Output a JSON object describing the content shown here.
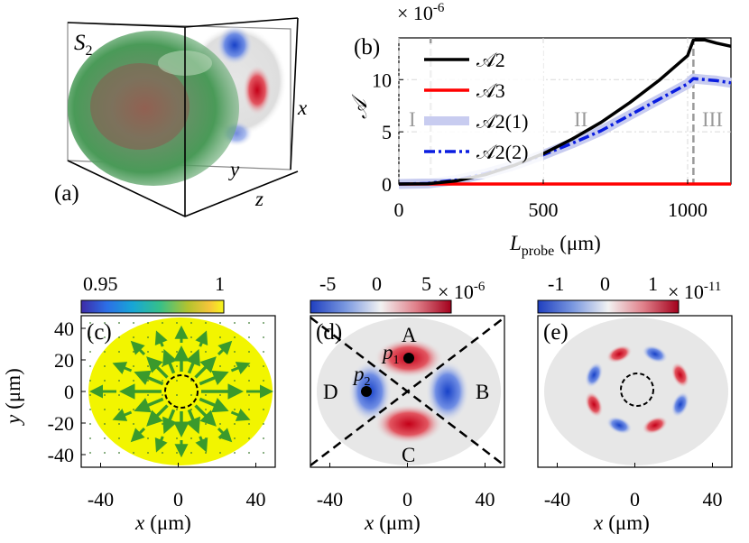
{
  "colors": {
    "A2": "#000000",
    "A3": "#ff0000",
    "A2_1": "#c8ccf0",
    "A2_2": "#0a1de0",
    "field_yellow": "#f2f500",
    "arrow_green": "#3a9a2c",
    "red_lobe": "#d42a2a",
    "blue_lobe": "#3c66dd"
  },
  "panel_a": {
    "label": "(a)",
    "species_label": "S",
    "species_sub": "2",
    "axis_x": "x",
    "axis_y": "y",
    "axis_z": "z"
  },
  "panel_b": {
    "label": "(b)",
    "exponent_text": "× 10",
    "exponent_power": "-6",
    "ylabel": "𝒜",
    "xlabel_main": "L",
    "xlabel_sub": "probe",
    "xlabel_unit": "(μm)",
    "region_I": "I",
    "region_II": "II",
    "region_III": "III",
    "legend": [
      "𝒜2",
      "𝒜3",
      "𝒜2(1)",
      "𝒜2(2)"
    ]
  },
  "panel_c": {
    "label": "(c)",
    "cbar_min": "0.95",
    "cbar_max": "1",
    "ylabel_main": "y",
    "ylabel_unit": "(μm)",
    "xlabel_main": "x",
    "xlabel_unit": "(μm)"
  },
  "panel_d": {
    "label": "(d)",
    "cbar_ticks": [
      "-5",
      "0",
      "5"
    ],
    "exponent_text": "× 10",
    "exponent_power": "-6",
    "region_A": "A",
    "region_B": "B",
    "region_C": "C",
    "region_D": "D",
    "point_p1": "p",
    "point_p1_sub": "1",
    "point_p2": "p",
    "point_p2_sub": "2",
    "xlabel_main": "x",
    "xlabel_unit": "(μm)"
  },
  "panel_e": {
    "label": "(e)",
    "cbar_ticks": [
      "-1",
      "0",
      "1"
    ],
    "exponent_text": "× 10",
    "exponent_power": "-11",
    "xlabel_main": "x",
    "xlabel_unit": "(μm)"
  },
  "chart_data": [
    {
      "id": "b",
      "type": "line",
      "title": "",
      "xlabel": "L_probe (μm)",
      "ylabel": "𝒜 (×10^-6)",
      "xlim": [
        0,
        1150
      ],
      "ylim": [
        0,
        14
      ],
      "xticks": [
        0,
        500,
        1000
      ],
      "yticks": [
        0,
        5,
        10
      ],
      "x_tick_labels": [
        "0",
        "500",
        "1000"
      ],
      "y_tick_labels": [
        "0",
        "5",
        "10"
      ],
      "vlines": [
        110,
        1020
      ],
      "legend_position": "top-left",
      "series": [
        {
          "name": "𝒜2",
          "color": "#000000",
          "style": "solid",
          "x": [
            0,
            100,
            200,
            300,
            400,
            500,
            600,
            700,
            800,
            900,
            1000,
            1020,
            1060,
            1100,
            1150
          ],
          "y": [
            0,
            0.02,
            0.3,
            0.9,
            1.8,
            2.9,
            4.3,
            5.9,
            7.8,
            9.9,
            12.3,
            13.8,
            13.8,
            13.5,
            13.2
          ]
        },
        {
          "name": "𝒜3",
          "color": "#ff0000",
          "style": "solid",
          "x": [
            0,
            1150
          ],
          "y": [
            0,
            0
          ]
        },
        {
          "name": "𝒜2(1)",
          "color": "#c8ccf0",
          "style": "wide",
          "x": [
            0,
            100,
            200,
            300,
            400,
            500,
            600,
            700,
            800,
            900,
            1000,
            1020,
            1060,
            1100,
            1150
          ],
          "y": [
            0,
            0.05,
            0.4,
            1.0,
            1.8,
            2.8,
            3.9,
            5.1,
            6.6,
            8.1,
            9.6,
            10.1,
            10.0,
            9.9,
            9.7
          ]
        },
        {
          "name": "𝒜2(2)",
          "color": "#0a1de0",
          "style": "dashdot",
          "x": [
            0,
            100,
            200,
            300,
            400,
            500,
            600,
            700,
            800,
            900,
            1000,
            1020,
            1060,
            1100,
            1150
          ],
          "y": [
            0,
            0.05,
            0.4,
            1.0,
            1.8,
            2.8,
            3.9,
            5.1,
            6.6,
            8.1,
            9.6,
            10.1,
            10.0,
            9.9,
            9.7
          ]
        }
      ]
    },
    {
      "id": "c",
      "type": "heatmap",
      "xlim": [
        -50,
        50
      ],
      "ylim": [
        -48,
        48
      ],
      "xticks": [
        -40,
        0,
        40
      ],
      "yticks": [
        -40,
        -20,
        0,
        20,
        40
      ],
      "x_tick_labels": [
        "-40",
        "0",
        "40"
      ],
      "y_tick_labels": [
        "-40",
        "-20",
        "0",
        "20",
        "40"
      ],
      "colorbar": {
        "min": 0.95,
        "max": 1
      },
      "marker_circle_radius": 9,
      "arrow_angles_deg": [
        0,
        22.5,
        45,
        67.5,
        90,
        112.5,
        135,
        157.5,
        180,
        202.5,
        225,
        247.5,
        270,
        292.5,
        315,
        337.5
      ],
      "arrow_lengths": [
        40,
        28,
        26,
        22,
        22,
        22,
        26,
        28,
        40,
        28,
        26,
        22,
        22,
        22,
        26,
        28
      ]
    },
    {
      "id": "d",
      "type": "heatmap",
      "xlim": [
        -50,
        50
      ],
      "ylim": [
        -48,
        48
      ],
      "xticks": [
        -40,
        0,
        40
      ],
      "x_tick_labels": [
        "-40",
        "0",
        "40"
      ],
      "colorbar": {
        "min": -5e-06,
        "max": 5e-06,
        "ticks": [
          -5,
          0,
          5
        ]
      },
      "lobes": [
        {
          "region": "A",
          "x": 0,
          "y": 18,
          "sign": 1
        },
        {
          "region": "C",
          "x": 0,
          "y": -18,
          "sign": 1
        },
        {
          "region": "B",
          "x": 19,
          "y": 0,
          "sign": -1
        },
        {
          "region": "D",
          "x": -19,
          "y": 0,
          "sign": -1
        }
      ],
      "points": [
        {
          "name": "p1",
          "x": 0,
          "y": 18
        },
        {
          "name": "p2",
          "x": -19,
          "y": 0
        }
      ],
      "diagonals_deg": [
        40,
        -40
      ]
    },
    {
      "id": "e",
      "type": "heatmap",
      "xlim": [
        -50,
        50
      ],
      "ylim": [
        -48,
        48
      ],
      "xticks": [
        -40,
        0,
        40
      ],
      "x_tick_labels": [
        "-40",
        "0",
        "40"
      ],
      "colorbar": {
        "min": -1e-11,
        "max": 1e-11,
        "ticks": [
          -1,
          0,
          1
        ]
      },
      "marker_circle_radius": 9,
      "ring_radius": 20,
      "lobe_count": 8,
      "lobe_signs": [
        1,
        -1,
        1,
        -1,
        1,
        -1,
        1,
        -1
      ]
    }
  ]
}
